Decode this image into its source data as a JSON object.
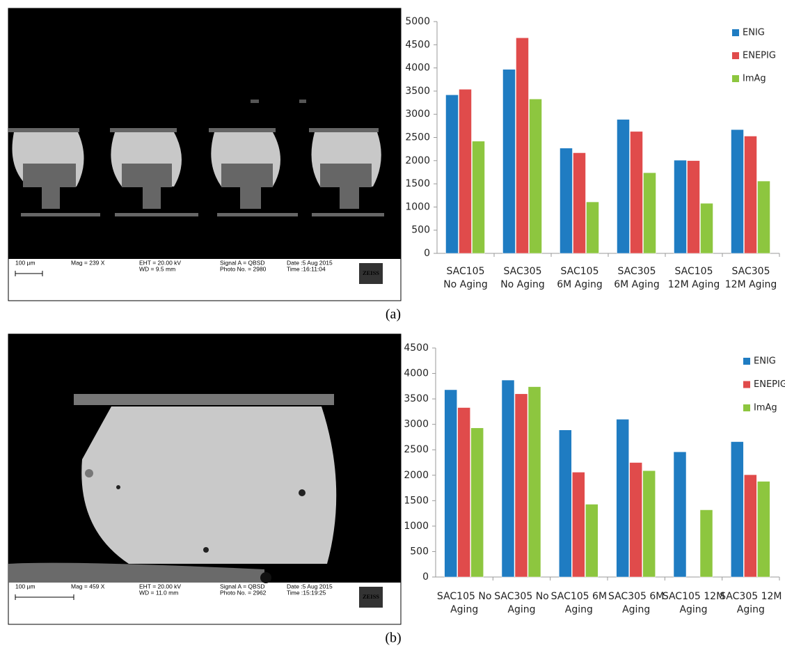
{
  "chart_data": [
    {
      "type": "bar",
      "categories": [
        "SAC105 No Aging",
        "SAC305 No Aging",
        "SAC105 6M Aging",
        "SAC305 6M Aging",
        "SAC105 12M Aging",
        "SAC305 12M Aging"
      ],
      "series": [
        {
          "name": "ENIG",
          "color": "#1f7cc2",
          "values": [
            3420,
            3970,
            2270,
            2890,
            2010,
            2670
          ]
        },
        {
          "name": "ENEPIG",
          "color": "#e04b4b",
          "values": [
            3540,
            4650,
            2170,
            2630,
            2000,
            2530
          ]
        },
        {
          "name": "ImAg",
          "color": "#8dc63f",
          "values": [
            2420,
            3330,
            1110,
            1740,
            1080,
            1560
          ]
        }
      ],
      "ylim": [
        0,
        5000
      ],
      "yticks": [
        0,
        500,
        1000,
        1500,
        2000,
        2500,
        3000,
        3500,
        4000,
        4500,
        5000
      ],
      "grid": false,
      "legend": "upper right"
    },
    {
      "type": "bar",
      "categories": [
        "SAC105 No Aging",
        "SAC305 No Aging",
        "SAC105 6M Aging",
        "SAC305 6M Aging",
        "SAC105 12M Aging",
        "SAC305 12M Aging"
      ],
      "series": [
        {
          "name": "ENIG",
          "color": "#1f7cc2",
          "values": [
            3680,
            3870,
            2890,
            3100,
            2460,
            2660
          ]
        },
        {
          "name": "ENEPIG",
          "color": "#e04b4b",
          "values": [
            3330,
            3600,
            2060,
            2250,
            null,
            2010
          ]
        },
        {
          "name": "ImAg",
          "color": "#8dc63f",
          "values": [
            2930,
            3740,
            1430,
            2090,
            1320,
            1880
          ]
        }
      ],
      "ylim": [
        0,
        4500
      ],
      "yticks": [
        0,
        500,
        1000,
        1500,
        2000,
        2500,
        3000,
        3500,
        4000,
        4500
      ],
      "grid": false,
      "legend": "upper right"
    }
  ],
  "panels": [
    {
      "label": "(a)",
      "micrograph": {
        "scale_bar": "100 µm",
        "mag": "Mag =  239 X",
        "eht": "EHT = 20.00 kV",
        "wd": "WD =  9.5 mm",
        "signal": "Signal A = QBSD",
        "photo": "Photo No. = 2980",
        "date": "Date :5 Aug 2015",
        "time": "Time :16:11:04",
        "brand": "ZEISS"
      }
    },
    {
      "label": "(b)",
      "micrograph": {
        "scale_bar": "100 µm",
        "mag": "Mag =  459 X",
        "eht": "EHT = 20.00 kV",
        "wd": "WD = 11.0 mm",
        "signal": "Signal A = QBSD",
        "photo": "Photo No. = 2962",
        "date": "Date :5 Aug 2015",
        "time": "Time :15:19:25",
        "brand": "ZEISS"
      }
    }
  ]
}
